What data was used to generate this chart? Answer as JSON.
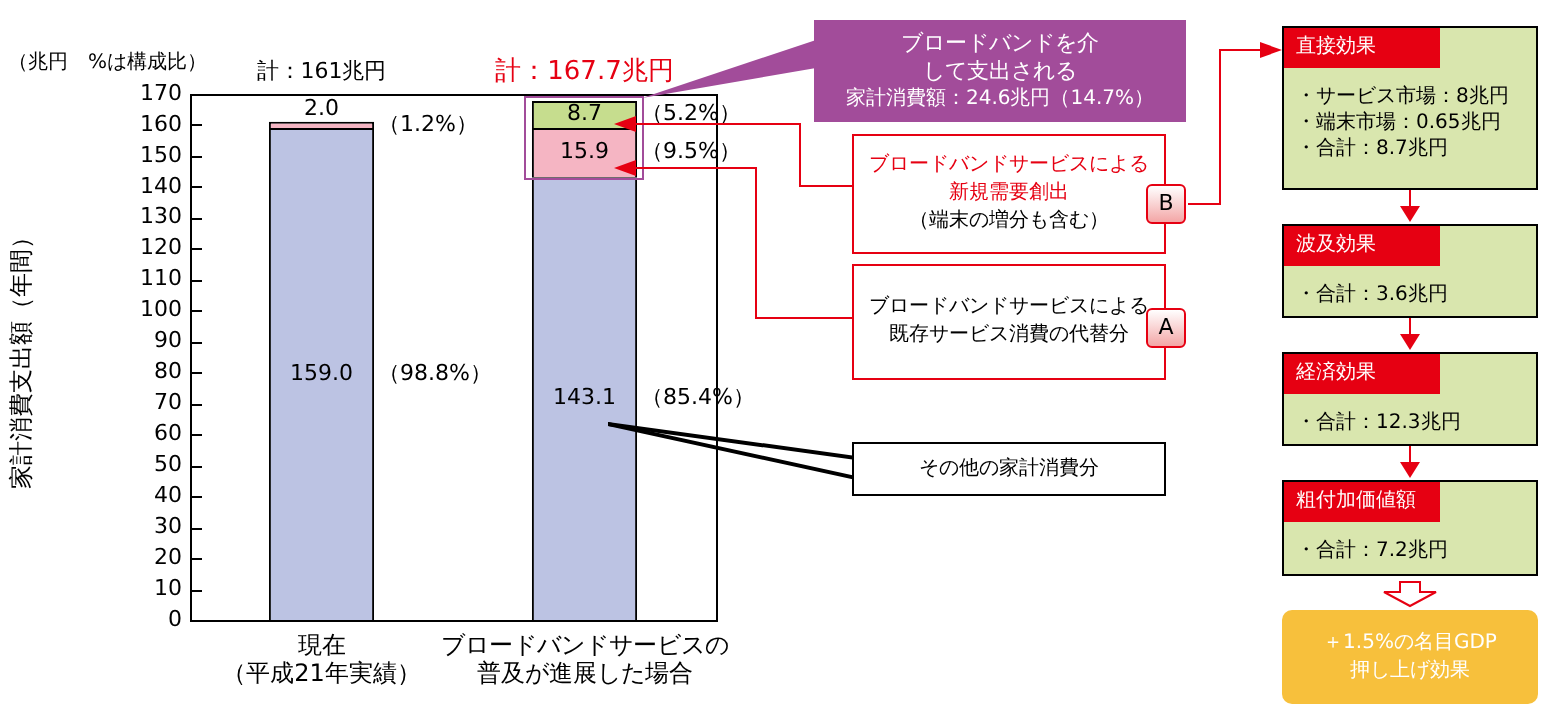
{
  "chart_data": {
    "type": "bar",
    "stacked": true,
    "ylabel": "家計消費支出額（年間）",
    "categories": [
      "現在（平成21年実績）",
      "ブロードバンドサービスの普及が進展した場合"
    ],
    "series": [
      {
        "color": "#bcc3e3",
        "values": [
          159.0,
          143.1
        ],
        "value_labels": [
          "159.0",
          "143.1"
        ]
      },
      {
        "color": "#f5b5c3",
        "values": [
          2.0,
          15.9
        ],
        "value_labels": [
          "2.0",
          "15.9"
        ]
      },
      {
        "color": "#c6dd8e",
        "values": [
          null,
          8.7
        ],
        "value_labels": [
          null,
          "8.7"
        ]
      }
    ],
    "totals": [
      "計：161兆円",
      "計：167.7兆円"
    ],
    "ylim": [
      0,
      170
    ],
    "yticks": [
      0,
      10,
      20,
      30,
      40,
      50,
      60,
      70,
      80,
      90,
      100,
      110,
      120,
      130,
      140,
      150,
      160,
      170
    ],
    "grid": false,
    "legend": false,
    "annotations": [
      "（兆円　%は構成比）",
      "（1.2%）",
      "（98.8%）",
      "（5.2%）",
      "（9.5%）",
      "（85.4%）",
      "ブロードバンドを介して支出される",
      "家計消費額：24.6兆円（14.7%）",
      "ブロードバンドサービスによる新規需要創出",
      "（端末の増分も含む）",
      "B",
      "ブロードバンドサービスによる既存サービス消費の代替分",
      "A",
      "その他の家計消費分",
      "直接効果",
      "・サービス市場：8兆円",
      "・端末市場：0.65兆円",
      "・合計：8.7兆円",
      "波及効果",
      "・合計：3.6兆円",
      "経済効果",
      "・合計：12.3兆円",
      "粗付加価値額",
      "・合計：7.2兆円",
      "＋1.5%の名目GDP押し上げ効果"
    ]
  }
}
